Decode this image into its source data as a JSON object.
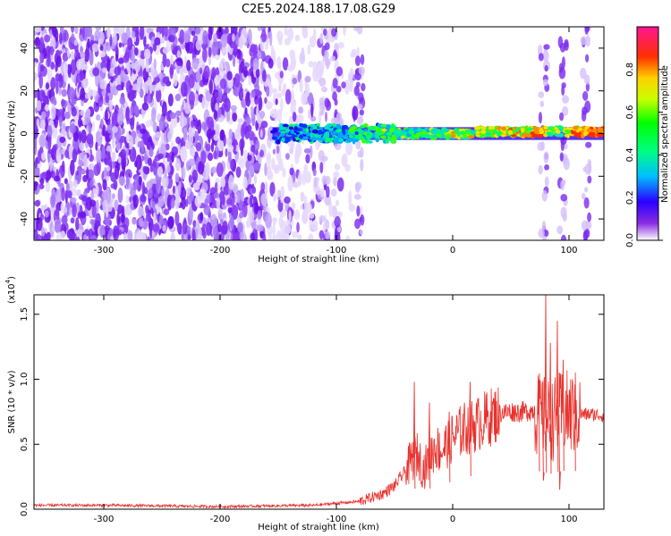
{
  "title": "C2E5.2024.188.17.08.G29",
  "chart_data": [
    {
      "type": "heatmap",
      "xlabel": "Height of straight line (km)",
      "ylabel": "Frequency (Hz)",
      "xlim": [
        -360,
        130
      ],
      "ylim": [
        -50,
        50
      ],
      "x_ticks": [
        "-300",
        "-200",
        "-100",
        "0",
        "100"
      ],
      "y_ticks": [
        "-40",
        "-20",
        "0",
        "20",
        "40"
      ],
      "colorbar": {
        "label": "Normalized spectral amplitude",
        "ticks": [
          "0.0",
          "0.2",
          "0.4",
          "0.6",
          "0.8"
        ],
        "range": [
          0,
          1
        ],
        "colors": [
          "#ffffff",
          "#8a2be2",
          "#0000ff",
          "#00bfff",
          "#00ff7f",
          "#00ff00",
          "#adff2f",
          "#ffff00",
          "#ffa500",
          "#ff0000",
          "#ff1493"
        ]
      },
      "features": {
        "noise_region": [
          -360,
          -78
        ],
        "dense_noise_region": [
          -360,
          -160
        ],
        "signal_band": {
          "x_range": [
            -155,
            130
          ],
          "center_frequency": 0,
          "width_hz": 6
        },
        "vertical_streaks_x": [
          -110,
          -100,
          -80,
          78,
          95,
          115
        ]
      },
      "grid": false,
      "legend": "none"
    },
    {
      "type": "line",
      "xlabel": "Height of straight line (km)",
      "ylabel": "SNR (10 * v/v)",
      "y_multiplier": "(x10",
      "y_multiplier_exp": "4",
      "y_multiplier_close": ")",
      "xlim": [
        -360,
        130
      ],
      "ylim": [
        0,
        1.65
      ],
      "x_ticks": [
        "-300",
        "-200",
        "-100",
        "0",
        "100"
      ],
      "y_ticks": [
        "0.0",
        "0.5",
        "1.0",
        "1.5"
      ],
      "series": [
        {
          "color": "#e8322d",
          "x": [
            -360,
            -300,
            -200,
            -120,
            -80,
            -60,
            -50,
            -40,
            -35,
            -30,
            -25,
            -20,
            -15,
            -10,
            -5,
            0,
            10,
            20,
            30,
            40,
            50,
            60,
            70,
            75,
            80,
            85,
            90,
            95,
            100,
            110,
            120,
            130
          ],
          "y": [
            0.03,
            0.03,
            0.02,
            0.03,
            0.06,
            0.12,
            0.18,
            0.3,
            0.38,
            0.42,
            0.3,
            0.4,
            0.48,
            0.45,
            0.5,
            0.55,
            0.62,
            0.65,
            0.7,
            0.74,
            0.75,
            0.75,
            0.76,
            0.72,
            0.7,
            0.68,
            0.72,
            0.74,
            0.74,
            0.73,
            0.73,
            0.72
          ],
          "spikes": [
            [
              -33,
              0.98
            ],
            [
              -20,
              0.82
            ],
            [
              15,
              0.98
            ],
            [
              -3,
              0.75
            ],
            [
              74,
              1.0
            ],
            [
              80,
              1.65
            ],
            [
              90,
              1.45
            ],
            [
              84,
              1.28
            ],
            [
              95,
              1.15
            ],
            [
              105,
              0.96
            ],
            [
              78,
              0.22
            ],
            [
              92,
              0.15
            ]
          ]
        }
      ],
      "grid": false,
      "legend": "none"
    }
  ]
}
